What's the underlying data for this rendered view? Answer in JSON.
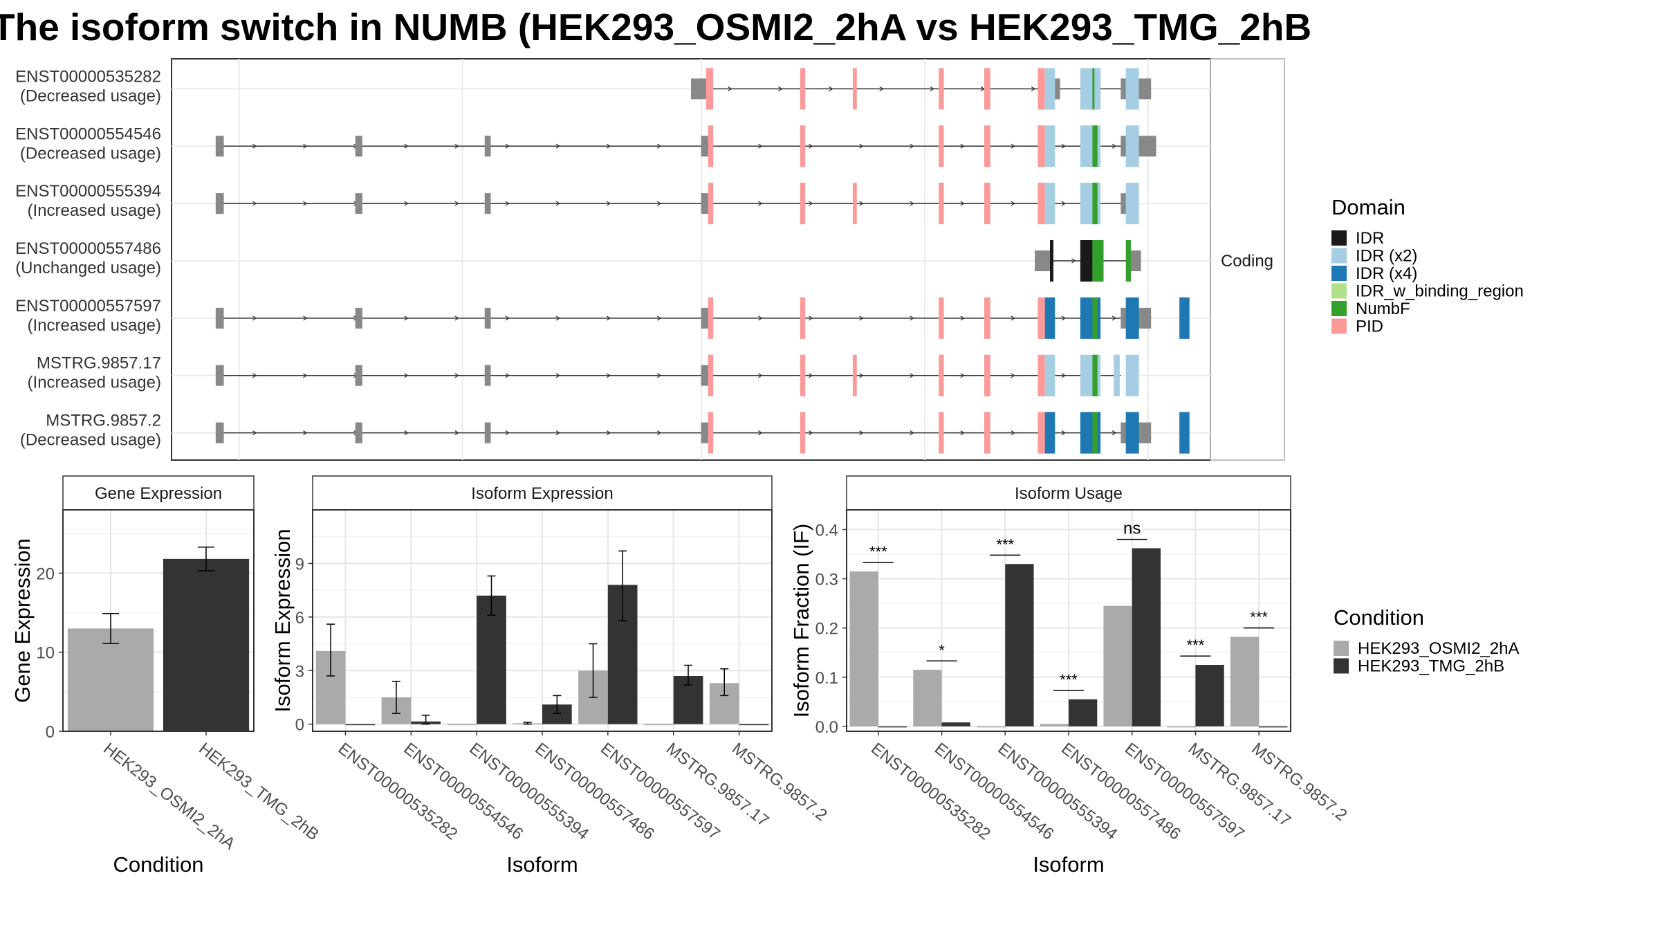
{
  "title": "The isoform switch in NUMB (HEK293_OSMI2_2hA vs HEK293_TMG_2hB",
  "isoform_structure": {
    "strip_label": "Coding",
    "domain_legend_title": "Domain",
    "domains": [
      {
        "name": "IDR",
        "color": "#1a1a1a"
      },
      {
        "name": "IDR (x2)",
        "color": "#a6cee3"
      },
      {
        "name": "IDR (x4)",
        "color": "#1f78b4"
      },
      {
        "name": "IDR_w_binding_region",
        "color": "#b2df8a"
      },
      {
        "name": "NumbF",
        "color": "#33a02c"
      },
      {
        "name": "PID",
        "color": "#fb9a99"
      }
    ],
    "utr_color": "#888888",
    "isoforms": [
      {
        "id": "ENST00000535282",
        "usage": "(Decreased usage)",
        "start": 0.5,
        "end": 0.955,
        "utr": [
          [
            0.5,
            0.515
          ],
          [
            0.855,
            0.865
          ],
          [
            0.895,
            0.905
          ],
          [
            0.925,
            0.955
          ]
        ],
        "exons": [
          [
            0.515,
            0.522,
            "PID"
          ],
          [
            0.608,
            0.613,
            "PID"
          ],
          [
            0.66,
            0.664,
            "PID"
          ],
          [
            0.745,
            0.75,
            "PID"
          ],
          [
            0.79,
            0.796,
            "PID"
          ],
          [
            0.843,
            0.85,
            "PID"
          ],
          [
            0.85,
            0.86,
            "IDR (x2)"
          ],
          [
            0.885,
            0.905,
            "IDR (x2)"
          ],
          [
            0.897,
            0.902,
            "NumbF"
          ],
          [
            0.93,
            0.943,
            "IDR (x2)"
          ],
          [
            0.899,
            0.905,
            "IDR (x2)"
          ]
        ]
      },
      {
        "id": "ENST00000554546",
        "usage": "(Decreased usage)",
        "start": 0.03,
        "end": 0.96,
        "utr": [
          [
            0.03,
            0.038
          ],
          [
            0.168,
            0.175
          ],
          [
            0.296,
            0.302
          ],
          [
            0.51,
            0.517
          ],
          [
            0.925,
            0.96
          ]
        ],
        "exons": [
          [
            0.517,
            0.522,
            "PID"
          ],
          [
            0.608,
            0.613,
            "PID"
          ],
          [
            0.745,
            0.75,
            "PID"
          ],
          [
            0.79,
            0.796,
            "PID"
          ],
          [
            0.843,
            0.85,
            "PID"
          ],
          [
            0.85,
            0.86,
            "IDR (x2)"
          ],
          [
            0.885,
            0.905,
            "IDR (x2)"
          ],
          [
            0.897,
            0.902,
            "NumbF"
          ],
          [
            0.93,
            0.943,
            "IDR (x2)"
          ]
        ]
      },
      {
        "id": "ENST00000555394",
        "usage": "(Increased usage)",
        "start": 0.03,
        "end": 0.94,
        "utr": [
          [
            0.03,
            0.038
          ],
          [
            0.168,
            0.175
          ],
          [
            0.296,
            0.302
          ],
          [
            0.51,
            0.517
          ],
          [
            0.925,
            0.94
          ]
        ],
        "exons": [
          [
            0.517,
            0.522,
            "PID"
          ],
          [
            0.608,
            0.613,
            "PID"
          ],
          [
            0.66,
            0.664,
            "PID"
          ],
          [
            0.745,
            0.75,
            "PID"
          ],
          [
            0.79,
            0.796,
            "PID"
          ],
          [
            0.843,
            0.85,
            "PID"
          ],
          [
            0.85,
            0.86,
            "IDR (x2)"
          ],
          [
            0.885,
            0.905,
            "IDR (x2)"
          ],
          [
            0.897,
            0.902,
            "NumbF"
          ],
          [
            0.93,
            0.943,
            "IDR (x2)"
          ]
        ]
      },
      {
        "id": "ENST00000557486",
        "usage": "(Unchanged usage)",
        "start": 0.84,
        "end": 0.945,
        "utr": [
          [
            0.84,
            0.855
          ],
          [
            0.935,
            0.945
          ]
        ],
        "exons": [
          [
            0.855,
            0.858,
            "IDR"
          ],
          [
            0.885,
            0.897,
            "IDR"
          ],
          [
            0.897,
            0.908,
            "NumbF"
          ],
          [
            0.93,
            0.935,
            "NumbF"
          ]
        ]
      },
      {
        "id": "ENST00000557597",
        "usage": "(Increased usage)",
        "start": 0.03,
        "end": 0.955,
        "utr": [
          [
            0.03,
            0.038
          ],
          [
            0.168,
            0.175
          ],
          [
            0.296,
            0.302
          ],
          [
            0.51,
            0.517
          ],
          [
            0.925,
            0.955
          ]
        ],
        "exons": [
          [
            0.517,
            0.522,
            "PID"
          ],
          [
            0.608,
            0.613,
            "PID"
          ],
          [
            0.745,
            0.75,
            "PID"
          ],
          [
            0.79,
            0.796,
            "PID"
          ],
          [
            0.843,
            0.85,
            "PID"
          ],
          [
            0.85,
            0.86,
            "IDR (x4)"
          ],
          [
            0.885,
            0.905,
            "IDR (x4)"
          ],
          [
            0.897,
            0.902,
            "NumbF"
          ],
          [
            0.93,
            0.943,
            "IDR (x4)"
          ],
          [
            0.983,
            0.993,
            "IDR (x4)"
          ]
        ]
      },
      {
        "id": "MSTRG.9857.17",
        "usage": "(Increased usage)",
        "start": 0.03,
        "end": 0.925,
        "utr": [
          [
            0.03,
            0.038
          ],
          [
            0.168,
            0.175
          ],
          [
            0.296,
            0.302
          ],
          [
            0.51,
            0.517
          ]
        ],
        "exons": [
          [
            0.517,
            0.522,
            "PID"
          ],
          [
            0.608,
            0.613,
            "PID"
          ],
          [
            0.66,
            0.664,
            "PID"
          ],
          [
            0.745,
            0.75,
            "PID"
          ],
          [
            0.79,
            0.796,
            "PID"
          ],
          [
            0.843,
            0.85,
            "PID"
          ],
          [
            0.85,
            0.86,
            "IDR (x2)"
          ],
          [
            0.885,
            0.905,
            "IDR (x2)"
          ],
          [
            0.897,
            0.902,
            "NumbF"
          ],
          [
            0.93,
            0.943,
            "IDR (x2)"
          ],
          [
            0.918,
            0.924,
            "IDR (x2)"
          ]
        ]
      },
      {
        "id": "MSTRG.9857.2",
        "usage": "(Decreased usage)",
        "start": 0.03,
        "end": 0.955,
        "utr": [
          [
            0.03,
            0.038
          ],
          [
            0.168,
            0.175
          ],
          [
            0.296,
            0.302
          ],
          [
            0.51,
            0.517
          ],
          [
            0.925,
            0.955
          ]
        ],
        "exons": [
          [
            0.517,
            0.522,
            "PID"
          ],
          [
            0.608,
            0.613,
            "PID"
          ],
          [
            0.745,
            0.75,
            "PID"
          ],
          [
            0.79,
            0.796,
            "PID"
          ],
          [
            0.843,
            0.85,
            "PID"
          ],
          [
            0.85,
            0.86,
            "IDR (x4)"
          ],
          [
            0.885,
            0.905,
            "IDR (x4)"
          ],
          [
            0.897,
            0.902,
            "NumbF"
          ],
          [
            0.93,
            0.943,
            "IDR (x4)"
          ],
          [
            0.983,
            0.993,
            "IDR (x4)"
          ]
        ]
      }
    ]
  },
  "condition_legend": {
    "title": "Condition",
    "items": [
      {
        "name": "HEK293_OSMI2_2hA",
        "color": "#aaaaaa"
      },
      {
        "name": "HEK293_TMG_2hB",
        "color": "#333333"
      }
    ]
  },
  "chart_data": [
    {
      "type": "bar",
      "title": "Gene Expression",
      "xlabel": "Condition",
      "ylabel": "Gene Expression",
      "categories": [
        "HEK293_OSMI2_2hA",
        "HEK293_TMG_2hB"
      ],
      "values": [
        13.0,
        21.8
      ],
      "errors": [
        [
          11.1,
          14.9
        ],
        [
          20.3,
          23.3
        ]
      ],
      "colors": [
        "#aaaaaa",
        "#333333"
      ],
      "ylim": [
        0,
        28
      ],
      "yticks": [
        0,
        10,
        20
      ]
    },
    {
      "type": "bar",
      "title": "Isoform Expression",
      "xlabel": "Isoform",
      "ylabel": "Isoform Expression",
      "categories": [
        "ENST00000535282",
        "ENST00000554546",
        "ENST00000555394",
        "ENST00000557486",
        "ENST00000557597",
        "MSTRG.9857.17",
        "MSTRG.9857.2"
      ],
      "series": [
        {
          "name": "HEK293_OSMI2_2hA",
          "color": "#aaaaaa",
          "values": [
            4.1,
            1.5,
            0.0,
            0.05,
            3.0,
            0.0,
            2.3
          ],
          "errors": [
            [
              2.7,
              5.6
            ],
            [
              0.6,
              2.4
            ],
            null,
            [
              0.0,
              0.1
            ],
            [
              1.5,
              4.5
            ],
            null,
            [
              1.6,
              3.1
            ]
          ]
        },
        {
          "name": "HEK293_TMG_2hB",
          "color": "#333333",
          "values": [
            0.0,
            0.15,
            7.2,
            1.1,
            7.8,
            2.7,
            0.0
          ],
          "errors": [
            null,
            [
              0.0,
              0.5
            ],
            [
              6.1,
              8.3
            ],
            [
              0.6,
              1.6
            ],
            [
              5.8,
              9.7
            ],
            [
              2.2,
              3.3
            ],
            null
          ]
        }
      ],
      "ylim": [
        -0.4,
        12.0
      ],
      "yticks": [
        0,
        3,
        6,
        9
      ]
    },
    {
      "type": "bar",
      "title": "Isoform Usage",
      "xlabel": "Isoform",
      "ylabel": "Isoform Fraction (IF)",
      "categories": [
        "ENST00000535282",
        "ENST00000554546",
        "ENST00000555394",
        "ENST00000557486",
        "ENST00000557597",
        "MSTRG.9857.17",
        "MSTRG.9857.2"
      ],
      "series": [
        {
          "name": "HEK293_OSMI2_2hA",
          "color": "#aaaaaa",
          "values": [
            0.315,
            0.115,
            0.0,
            0.005,
            0.245,
            0.0,
            0.182
          ]
        },
        {
          "name": "HEK293_TMG_2hB",
          "color": "#333333",
          "values": [
            0.0,
            0.008,
            0.33,
            0.055,
            0.362,
            0.125,
            0.0
          ]
        }
      ],
      "significance": [
        "***",
        "*",
        "***",
        "***",
        "ns",
        "***",
        "***"
      ],
      "ylim": [
        -0.01,
        0.44
      ],
      "yticks": [
        0.0,
        0.1,
        0.2,
        0.3,
        0.4
      ]
    }
  ]
}
